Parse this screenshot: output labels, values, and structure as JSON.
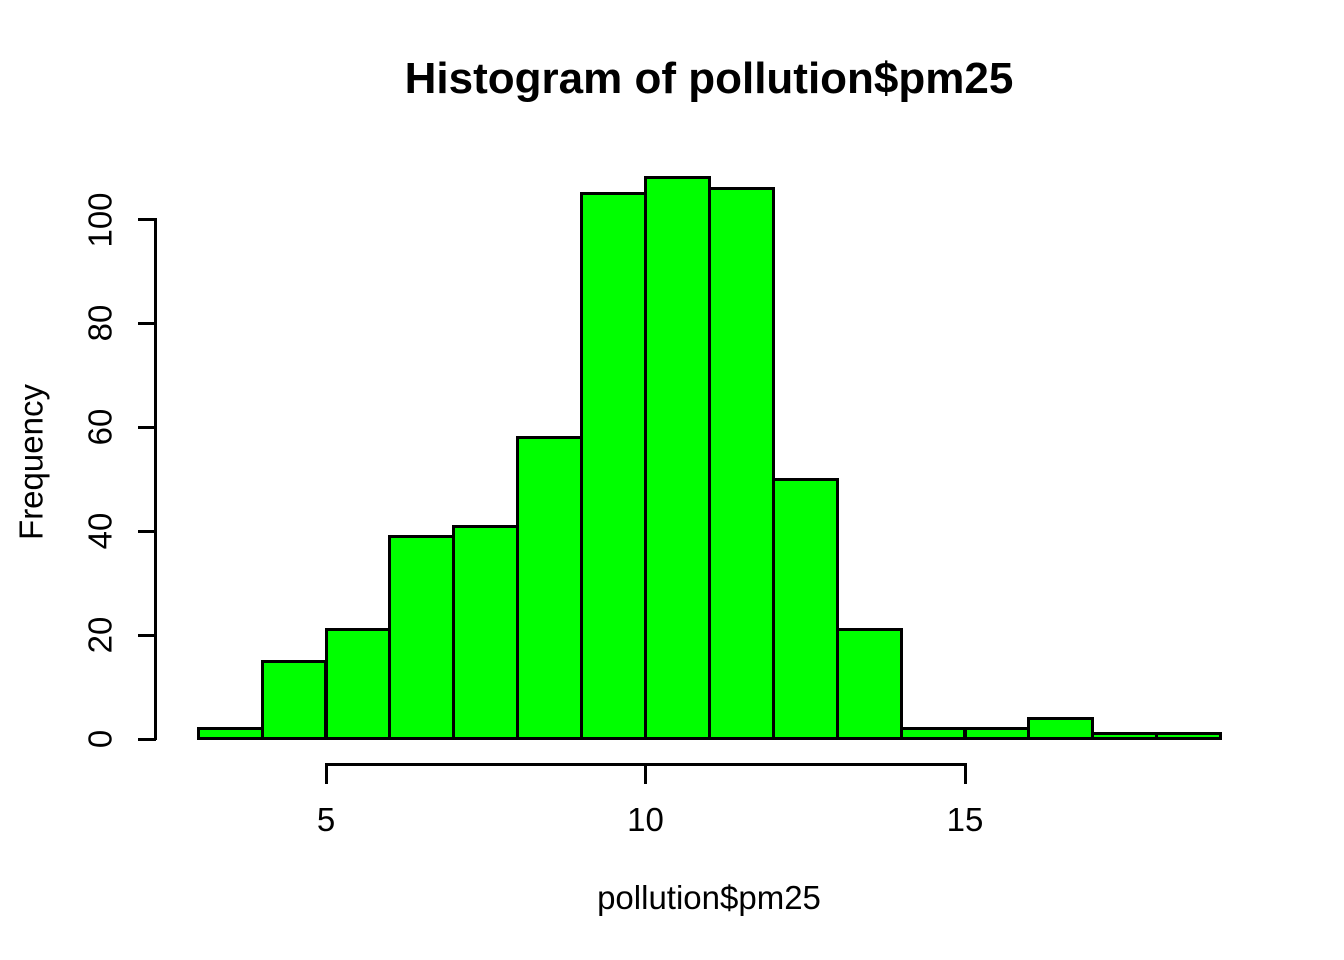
{
  "chart_data": {
    "type": "bar",
    "subtype": "histogram",
    "title": "Histogram of pollution$pm25",
    "xlabel": "pollution$pm25",
    "ylabel": "Frequency",
    "breaks": [
      3,
      4,
      5,
      6,
      7,
      8,
      9,
      10,
      11,
      12,
      13,
      14,
      15,
      16,
      17,
      18,
      19
    ],
    "counts": [
      2,
      15,
      21,
      39,
      41,
      58,
      105,
      108,
      106,
      50,
      21,
      2,
      2,
      4,
      1,
      1
    ],
    "bin_width": 1,
    "x_ticks": [
      5,
      10,
      15
    ],
    "y_ticks": [
      0,
      20,
      40,
      60,
      80,
      100
    ],
    "xlim": [
      3,
      19
    ],
    "ylim": [
      0,
      108
    ],
    "grid": false,
    "legend": null,
    "bar_fill_color": "#00ff00",
    "bar_border_color": "#000000",
    "axis_color": "#000000",
    "text_color": "#000000",
    "background_color": "#ffffff"
  }
}
